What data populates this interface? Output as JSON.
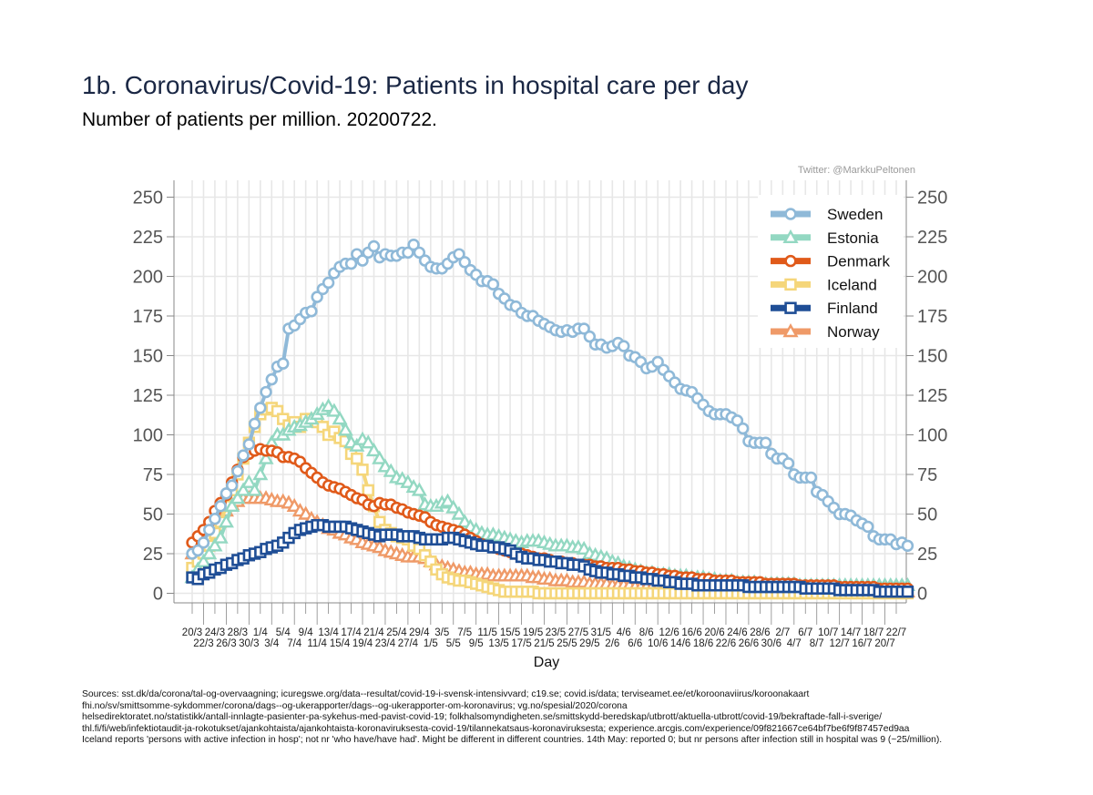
{
  "title": "1b. Coronavirus/Covid-19: Patients in hospital care per day",
  "subtitle": "Number of patients per million. 20200722.",
  "credit": "Twitter: @MarkkuPeltonen",
  "sources": [
    "Sources: sst.dk/da/corona/tal-og-overvaagning; icuregswe.org/data--resultat/covid-19-i-svensk-intensivvard; c19.se; covid.is/data;  terviseamet.ee/et/koroonaviirus/koroonakaart",
    "fhi.no/sv/smittsomme-sykdommer/corona/dags--og-ukerapporter/dags--og-ukerapporter-om-koronavirus; vg.no/spesial/2020/corona",
    "helsedirektoratet.no/statistikk/antall-innlagte-pasienter-pa-sykehus-med-pavist-covid-19; folkhalsomyndigheten.se/smittskydd-beredskap/utbrott/aktuella-utbrott/covid-19/bekraftade-fall-i-sverige/",
    "thl.fi/fi/web/infektiotaudit-ja-rokotukset/ajankohtaista/ajankohtaista-koronaviruksesta-covid-19/tilannekatsaus-koronaviruksesta; experience.arcgis.com/experience/09f821667ce64bf7be6f9f87457ed9aa",
    "Iceland reports 'persons with active infection in hosp'; not nr 'who have/have had'. Might be different in different countries. 14th May: reported 0; but nr persons after infection still in hospital was 9  (~25/million)."
  ],
  "chart_data": {
    "type": "line",
    "xlabel": "Day",
    "ylabel": "",
    "ylim": [
      0,
      250
    ],
    "yticks": [
      0,
      25,
      50,
      75,
      100,
      125,
      150,
      175,
      200,
      225,
      250
    ],
    "x_start": "2020-03-20",
    "x_end": "2020-07-22",
    "xtick_labels_top": [
      "20/3",
      "24/3",
      "28/3",
      "1/4",
      "5/4",
      "9/4",
      "13/4",
      "17/4",
      "21/4",
      "25/4",
      "29/4",
      "3/5",
      "7/5",
      "11/5",
      "15/5",
      "19/5",
      "23/5",
      "27/5",
      "31/5",
      "4/6",
      "8/6",
      "12/6",
      "16/6",
      "20/6",
      "24/6",
      "28/6",
      "2/7",
      "6/7",
      "10/7",
      "14/7",
      "18/7",
      "22/7"
    ],
    "xtick_labels_bottom": [
      "22/3",
      "26/3",
      "30/3",
      "3/4",
      "7/4",
      "11/4",
      "15/4",
      "19/4",
      "23/4",
      "27/4",
      "1/5",
      "5/5",
      "9/5",
      "13/5",
      "17/5",
      "21/5",
      "25/5",
      "29/5",
      "2/6",
      "6/6",
      "10/6",
      "14/6",
      "18/6",
      "22/6",
      "26/6",
      "30/6",
      "4/7",
      "8/7",
      "12/7",
      "16/7",
      "20/7"
    ],
    "grid": true,
    "legend_position": "top-right",
    "series": [
      {
        "name": "Sweden",
        "color": "#8fb9d8",
        "marker": "circle",
        "values": [
          25,
          27,
          32,
          40,
          47,
          55,
          63,
          68,
          77,
          87,
          94,
          107,
          117,
          127,
          135,
          143,
          145,
          167,
          169,
          173,
          177,
          178,
          187,
          192,
          196,
          202,
          206,
          208,
          208,
          214,
          210,
          215,
          219,
          212,
          214,
          213,
          213,
          215,
          215,
          220,
          215,
          210,
          206,
          205,
          205,
          208,
          212,
          214,
          209,
          204,
          201,
          197,
          197,
          195,
          189,
          186,
          182,
          181,
          177,
          175,
          175,
          172,
          170,
          168,
          166,
          165,
          166,
          165,
          167,
          167,
          162,
          157,
          157,
          155,
          156,
          158,
          156,
          150,
          149,
          146,
          142,
          143,
          146,
          141,
          137,
          133,
          129,
          128,
          127,
          123,
          119,
          115,
          113,
          113,
          113,
          111,
          109,
          104,
          96,
          95,
          95,
          95,
          88,
          85,
          85,
          82,
          75,
          73,
          73,
          73,
          64,
          62,
          58,
          54,
          50,
          50,
          49,
          46,
          44,
          42,
          36,
          34,
          34,
          34,
          31,
          32,
          30
        ]
      },
      {
        "name": "Estonia",
        "color": "#93d8c2",
        "marker": "triangle",
        "values": [
          10,
          15,
          20,
          25,
          30,
          35,
          45,
          55,
          60,
          65,
          70,
          65,
          75,
          85,
          95,
          100,
          100,
          103,
          105,
          106,
          108,
          110,
          113,
          116,
          118,
          115,
          110,
          103,
          95,
          93,
          97,
          95,
          90,
          85,
          80,
          77,
          73,
          72,
          70,
          67,
          65,
          56,
          55,
          55,
          57,
          58,
          54,
          50,
          45,
          42,
          40,
          38,
          37,
          37,
          36,
          35,
          34,
          33,
          32,
          33,
          33,
          33,
          32,
          31,
          30,
          30,
          30,
          29,
          29,
          28,
          25,
          24,
          23,
          22,
          20,
          19,
          17,
          16,
          15,
          14,
          13,
          13,
          12,
          12,
          12,
          11,
          11,
          11,
          10,
          10,
          10,
          9,
          9,
          8,
          8,
          8,
          7,
          7,
          7,
          7,
          6,
          6,
          6,
          6,
          6,
          6,
          6,
          5,
          5,
          5,
          5,
          5,
          5,
          5,
          5,
          5,
          5,
          5,
          5,
          5,
          5,
          5,
          5,
          5,
          5,
          5,
          5
        ]
      },
      {
        "name": "Denmark",
        "color": "#e05a1a",
        "marker": "circle",
        "values": [
          32,
          36,
          40,
          45,
          52,
          57,
          62,
          70,
          78,
          86,
          88,
          90,
          91,
          90,
          90,
          89,
          86,
          86,
          85,
          83,
          79,
          76,
          73,
          70,
          68,
          67,
          66,
          64,
          62,
          60,
          59,
          56,
          55,
          57,
          56,
          56,
          54,
          53,
          51,
          50,
          49,
          48,
          45,
          43,
          42,
          41,
          40,
          39,
          37,
          35,
          33,
          31,
          30,
          29,
          28,
          27,
          26,
          25,
          25,
          24,
          23,
          22,
          22,
          21,
          20,
          20,
          19,
          19,
          18,
          18,
          18,
          17,
          17,
          16,
          16,
          16,
          15,
          15,
          14,
          14,
          13,
          13,
          12,
          12,
          11,
          11,
          10,
          10,
          10,
          9,
          9,
          9,
          8,
          8,
          8,
          8,
          7,
          7,
          7,
          7,
          7,
          6,
          6,
          6,
          6,
          6,
          6,
          5,
          5,
          5,
          5,
          5,
          5,
          5,
          4,
          4,
          4,
          4,
          4,
          4,
          4,
          3,
          3,
          3,
          3,
          3,
          3
        ]
      },
      {
        "name": "Iceland",
        "color": "#f5d67a",
        "marker": "square",
        "values": [
          16,
          20,
          25,
          30,
          38,
          45,
          55,
          65,
          75,
          85,
          95,
          105,
          113,
          116,
          117,
          115,
          110,
          106,
          108,
          105,
          110,
          110,
          108,
          105,
          100,
          102,
          98,
          96,
          88,
          85,
          78,
          65,
          55,
          45,
          40,
          38,
          36,
          35,
          34,
          30,
          28,
          24,
          20,
          15,
          12,
          10,
          9,
          8,
          8,
          7,
          6,
          5,
          4,
          3,
          2,
          1,
          1,
          1,
          1,
          1,
          1,
          0,
          0,
          0,
          0,
          0,
          0,
          0,
          0,
          0,
          0,
          0,
          0,
          0,
          0,
          0,
          0,
          0,
          0,
          0,
          0,
          0,
          0,
          0,
          0,
          0,
          0,
          0,
          0,
          0,
          0,
          0,
          0,
          0,
          0,
          0,
          0,
          0,
          0,
          0,
          0,
          0,
          0,
          0,
          0,
          0,
          0,
          0,
          0,
          0,
          0,
          0,
          0,
          0,
          0,
          0,
          0,
          0,
          0,
          0,
          0,
          0,
          0,
          0,
          0,
          0,
          0
        ]
      },
      {
        "name": "Finland",
        "color": "#1f4e96",
        "marker": "square",
        "values": [
          10,
          9,
          12,
          13,
          15,
          16,
          18,
          19,
          21,
          22,
          24,
          25,
          26,
          28,
          29,
          30,
          32,
          35,
          38,
          40,
          41,
          42,
          43,
          43,
          42,
          42,
          42,
          42,
          41,
          40,
          39,
          38,
          37,
          36,
          37,
          37,
          37,
          36,
          36,
          36,
          35,
          34,
          34,
          34,
          34,
          35,
          35,
          34,
          33,
          32,
          31,
          30,
          30,
          29,
          29,
          28,
          27,
          25,
          23,
          22,
          22,
          21,
          21,
          20,
          20,
          19,
          19,
          18,
          18,
          17,
          15,
          14,
          13,
          13,
          12,
          12,
          11,
          11,
          10,
          10,
          9,
          9,
          8,
          8,
          7,
          7,
          6,
          6,
          6,
          5,
          5,
          5,
          5,
          5,
          5,
          5,
          5,
          5,
          4,
          4,
          4,
          4,
          4,
          4,
          4,
          4,
          4,
          4,
          3,
          3,
          3,
          3,
          3,
          3,
          2,
          2,
          2,
          2,
          2,
          2,
          2,
          1,
          1,
          1,
          1,
          1,
          1
        ]
      },
      {
        "name": "Norway",
        "color": "#ef9a68",
        "marker": "triangle",
        "values": [
          25,
          28,
          32,
          36,
          42,
          48,
          52,
          56,
          58,
          60,
          60,
          60,
          60,
          60,
          59,
          58,
          58,
          57,
          55,
          52,
          50,
          47,
          45,
          43,
          41,
          40,
          38,
          37,
          35,
          34,
          32,
          31,
          30,
          29,
          27,
          26,
          25,
          24,
          23,
          23,
          23,
          22,
          20,
          18,
          17,
          16,
          15,
          14,
          13,
          13,
          12,
          12,
          12,
          11,
          11,
          11,
          11,
          11,
          11,
          11,
          10,
          10,
          9,
          9,
          8,
          8,
          8,
          7,
          7,
          7,
          6,
          6,
          6,
          6,
          5,
          5,
          5,
          5,
          4,
          4,
          4,
          4,
          4,
          3,
          3,
          3,
          3,
          3,
          3,
          3,
          3,
          2,
          2,
          2,
          2,
          2,
          2,
          2,
          2,
          2,
          2,
          2,
          2,
          2,
          2,
          1,
          1,
          1,
          1,
          1,
          1,
          1,
          1,
          1,
          1,
          1,
          1,
          1,
          1,
          1,
          1,
          1,
          1,
          1,
          1,
          1,
          1
        ]
      }
    ]
  }
}
